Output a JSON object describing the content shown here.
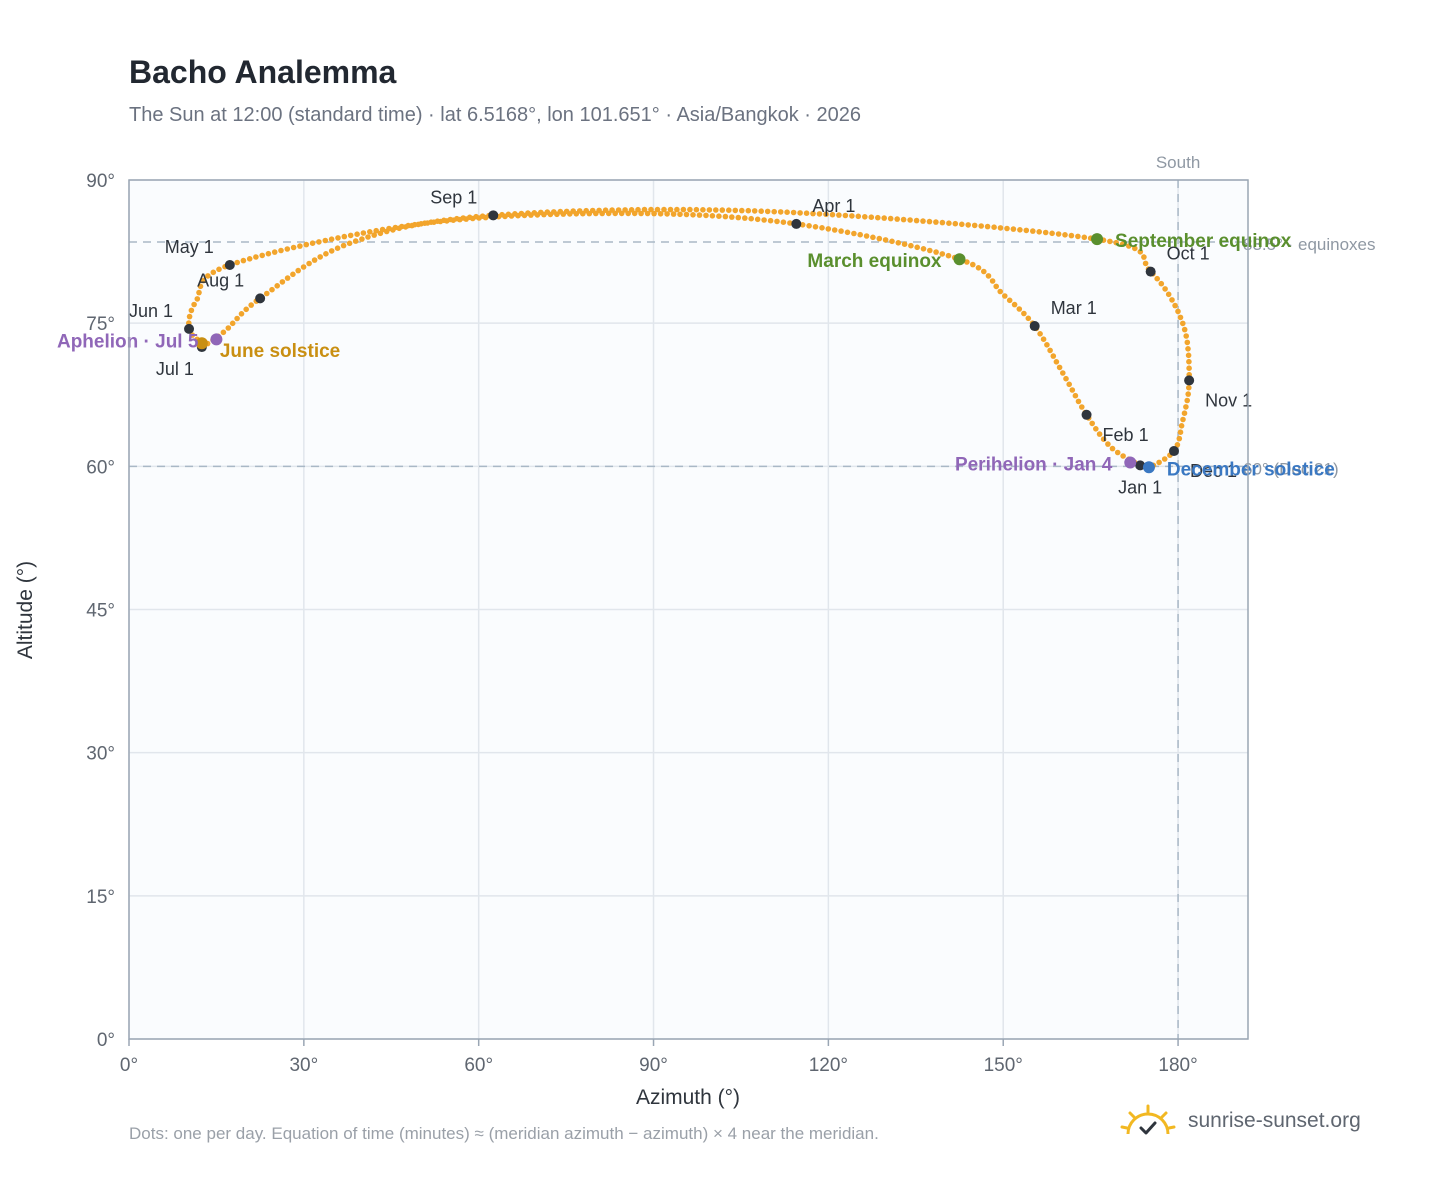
{
  "header": {
    "title": "Bacho Analemma",
    "subtitle": "The Sun at 12:00 (standard time) · lat 6.5168°, lon 101.651° · Asia/Bangkok · 2026"
  },
  "footer": {
    "note": "Dots: one per day. Equation of time (minutes) ≈ (meridian azimuth − azimuth) × 4 near the meridian.",
    "brand": "sunrise-sunset.org"
  },
  "icons": {
    "brand": "sun-check-icon"
  },
  "colors": {
    "curve": "#f2a52c",
    "month_marker": "#2f353d",
    "equinox": "#5a8f2e",
    "june_solstice": "#c98f12",
    "december_solstice": "#3a78c2",
    "apsis": "#9067b8",
    "reference_line": "#a9b8c6",
    "plot_bg": "#fafcfe",
    "grid": "#e1e6ec"
  },
  "chart_data": {
    "type": "scatter",
    "xlabel": "Azimuth (°)",
    "ylabel": "Altitude (°)",
    "xlim": [
      0,
      192
    ],
    "ylim": [
      0,
      90
    ],
    "x_ticks": [
      0,
      30,
      60,
      90,
      120,
      150,
      180
    ],
    "x_tick_labels": [
      "0°",
      "30°",
      "60°",
      "90°",
      "120°",
      "150°",
      "180°"
    ],
    "y_ticks": [
      0,
      15,
      30,
      45,
      60,
      75,
      90
    ],
    "y_tick_labels": [
      "0°",
      "15°",
      "30°",
      "45°",
      "60°",
      "75°",
      "90°"
    ],
    "grid": true,
    "meridian": {
      "azimuth": 180,
      "label": "South"
    },
    "reference_lines": [
      {
        "altitude": 83.5,
        "label": "83.5° · equinoxes"
      },
      {
        "altitude": 60.0,
        "label": "60° (Dec 21)"
      }
    ],
    "month_points": [
      {
        "label": "Jan 1",
        "az": 173.5,
        "alt": 60.1,
        "label_pos": "below"
      },
      {
        "label": "Feb 1",
        "az": 164.3,
        "alt": 65.4,
        "label_pos": "below-right"
      },
      {
        "label": "Mar 1",
        "az": 155.4,
        "alt": 74.7,
        "label_pos": "above-right"
      },
      {
        "label": "Apr 1",
        "az": 114.5,
        "alt": 85.4,
        "label_pos": "above-right"
      },
      {
        "label": "May 1",
        "az": 17.3,
        "alt": 81.1,
        "label_pos": "above-left"
      },
      {
        "label": "Jun 1",
        "az": 10.3,
        "alt": 74.4,
        "label_pos": "above-left"
      },
      {
        "label": "Jul 1",
        "az": 12.5,
        "alt": 72.5,
        "label_pos": "below-left"
      },
      {
        "label": "Aug 1",
        "az": 22.5,
        "alt": 77.6,
        "label_pos": "above-left"
      },
      {
        "label": "Sep 1",
        "az": 62.5,
        "alt": 86.3,
        "label_pos": "above-left"
      },
      {
        "label": "Oct 1",
        "az": 175.3,
        "alt": 80.4,
        "label_pos": "above-right"
      },
      {
        "label": "Nov 1",
        "az": 181.9,
        "alt": 69.0,
        "label_pos": "below-right"
      },
      {
        "label": "Dec 1",
        "az": 179.3,
        "alt": 61.6,
        "label_pos": "below-right"
      }
    ],
    "events": [
      {
        "label": "March equinox",
        "az": 142.5,
        "alt": 81.7,
        "kind": "equinox",
        "label_pos": "left"
      },
      {
        "label": "September equinox",
        "az": 166.1,
        "alt": 83.8,
        "kind": "equinox",
        "label_pos": "right"
      },
      {
        "label": "June solstice",
        "az": 12.5,
        "alt": 72.9,
        "kind": "june_solstice",
        "label_pos": "right-below"
      },
      {
        "label": "December solstice",
        "az": 175.0,
        "alt": 59.9,
        "kind": "december_solstice",
        "label_pos": "right"
      },
      {
        "label": "Aphelion · Jul 5",
        "az": 15.0,
        "alt": 73.3,
        "kind": "apsis",
        "label_pos": "left"
      },
      {
        "label": "Perihelion · Jan 4",
        "az": 171.8,
        "alt": 60.4,
        "kind": "apsis",
        "label_pos": "left"
      }
    ],
    "daily_path": [
      {
        "date": "Jan 1",
        "az": 173.5,
        "alt": 60.1
      },
      {
        "date": "Jan 15",
        "az": 168.5,
        "alt": 62.0
      },
      {
        "date": "Feb 1",
        "az": 164.3,
        "alt": 65.4
      },
      {
        "date": "Feb 15",
        "az": 160.2,
        "alt": 69.8
      },
      {
        "date": "Mar 1",
        "az": 155.4,
        "alt": 74.7
      },
      {
        "date": "Mar 10",
        "az": 150.0,
        "alt": 78.0
      },
      {
        "date": "Mar 20",
        "az": 142.5,
        "alt": 81.7
      },
      {
        "date": "Apr 1",
        "az": 114.5,
        "alt": 85.4
      },
      {
        "date": "Apr 10",
        "az": 85.0,
        "alt": 86.5
      },
      {
        "date": "Apr 20",
        "az": 50.0,
        "alt": 85.4
      },
      {
        "date": "May 1",
        "az": 17.3,
        "alt": 81.1
      },
      {
        "date": "May 15",
        "az": 11.5,
        "alt": 77.3
      },
      {
        "date": "Jun 1",
        "az": 10.3,
        "alt": 74.4
      },
      {
        "date": "Jun 21",
        "az": 12.5,
        "alt": 72.9
      },
      {
        "date": "Jul 1",
        "az": 12.5,
        "alt": 72.5
      },
      {
        "date": "Jul 15",
        "az": 16.5,
        "alt": 74.2
      },
      {
        "date": "Aug 1",
        "az": 22.5,
        "alt": 77.6
      },
      {
        "date": "Aug 15",
        "az": 38.0,
        "alt": 83.4
      },
      {
        "date": "Sep 1",
        "az": 62.5,
        "alt": 86.3
      },
      {
        "date": "Sep 10",
        "az": 110.0,
        "alt": 86.7
      },
      {
        "date": "Sep 23",
        "az": 166.1,
        "alt": 83.8
      },
      {
        "date": "Oct 1",
        "az": 175.3,
        "alt": 80.4
      },
      {
        "date": "Oct 15",
        "az": 180.8,
        "alt": 75.0
      },
      {
        "date": "Nov 1",
        "az": 181.9,
        "alt": 69.0
      },
      {
        "date": "Nov 15",
        "az": 180.7,
        "alt": 64.5
      },
      {
        "date": "Dec 1",
        "az": 179.3,
        "alt": 61.6
      },
      {
        "date": "Dec 21",
        "az": 175.0,
        "alt": 59.9
      },
      {
        "date": "Dec 31",
        "az": 173.5,
        "alt": 60.1
      }
    ]
  }
}
